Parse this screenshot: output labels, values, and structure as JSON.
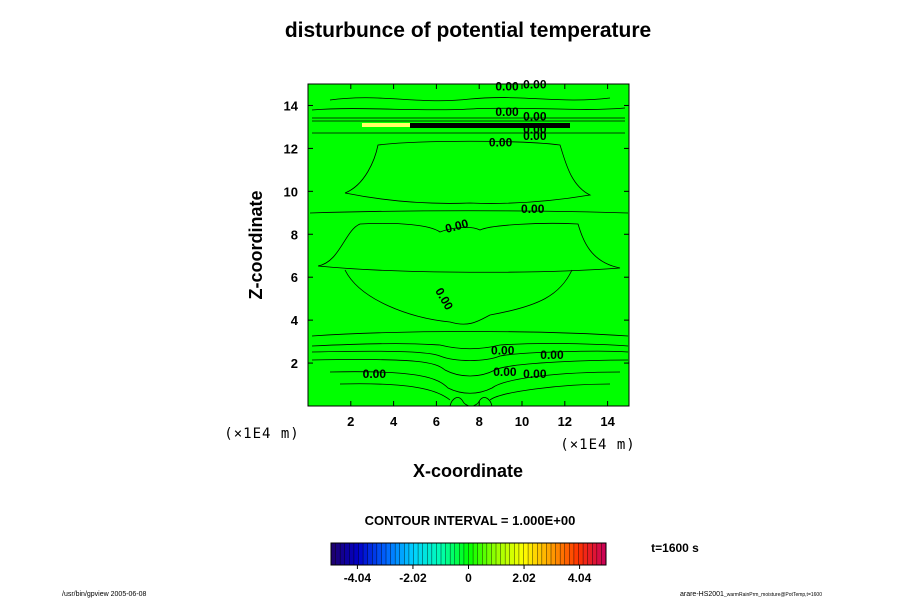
{
  "chart_data": {
    "type": "contour",
    "title": "disturbunce of potential temperature",
    "xlabel": "X-coordinate",
    "ylabel": "Z-coordinate",
    "x_unit": "(×1E4 m)",
    "z_unit": "(×1E4 m)",
    "xlim": [
      0,
      15
    ],
    "ylim": [
      0,
      15
    ],
    "x_ticks": [
      2,
      4,
      6,
      8,
      10,
      12,
      14
    ],
    "y_ticks": [
      2,
      4,
      6,
      8,
      10,
      12,
      14
    ],
    "contour_interval_text": "CONTOUR INTERVAL = 1.000E+00",
    "time_label": "t=1600 s",
    "field_color": "#00ff00",
    "contour_labels": [
      {
        "text": "0.00",
        "x": 9.3,
        "z": 14.7,
        "rot": 0
      },
      {
        "text": "0.00",
        "x": 10.6,
        "z": 14.8,
        "rot": 0
      },
      {
        "text": "0.00",
        "x": 9.3,
        "z": 13.5,
        "rot": 0
      },
      {
        "text": "0.00",
        "x": 10.6,
        "z": 13.3,
        "rot": 0
      },
      {
        "text": "0.00",
        "x": 10.6,
        "z": 12.7,
        "rot": 0
      },
      {
        "text": "0.00",
        "x": 10.6,
        "z": 12.4,
        "rot": 0
      },
      {
        "text": "0.00",
        "x": 9.0,
        "z": 12.1,
        "rot": 0
      },
      {
        "text": "0.00",
        "x": 10.5,
        "z": 9.0,
        "rot": 0
      },
      {
        "text": "0.00",
        "x": 7.0,
        "z": 8.2,
        "rot": -15
      },
      {
        "text": "0.00",
        "x": 6.2,
        "z": 4.9,
        "rot": 60
      },
      {
        "text": "0.00",
        "x": 9.1,
        "z": 2.4,
        "rot": 0
      },
      {
        "text": "0.00",
        "x": 11.4,
        "z": 2.2,
        "rot": 0
      },
      {
        "text": "0.00",
        "x": 3.1,
        "z": 1.3,
        "rot": 0
      },
      {
        "text": "0.00",
        "x": 9.2,
        "z": 1.4,
        "rot": 0
      },
      {
        "text": "0.00",
        "x": 10.6,
        "z": 1.3,
        "rot": 0
      }
    ],
    "colorbar": {
      "min": -5,
      "max": 5,
      "ticks": [
        -4.04,
        -2.02,
        0,
        2.02,
        4.04
      ],
      "tick_labels": [
        "-4.04",
        "-2.02",
        "0",
        "2.02",
        "4.04"
      ],
      "colormap": [
        "#20006a",
        "#0000c8",
        "#0064ff",
        "#00d2ff",
        "#00ffb4",
        "#00ff00",
        "#96ff00",
        "#ffff00",
        "#ffa000",
        "#ff3200",
        "#c8005a"
      ]
    }
  },
  "footer": {
    "left": "/usr/bin/gpview 2005-06-08",
    "right_main": "arare-HS2001",
    "right_sub": "_warmRainPrm_moisture@PotTemp,t=1600"
  }
}
